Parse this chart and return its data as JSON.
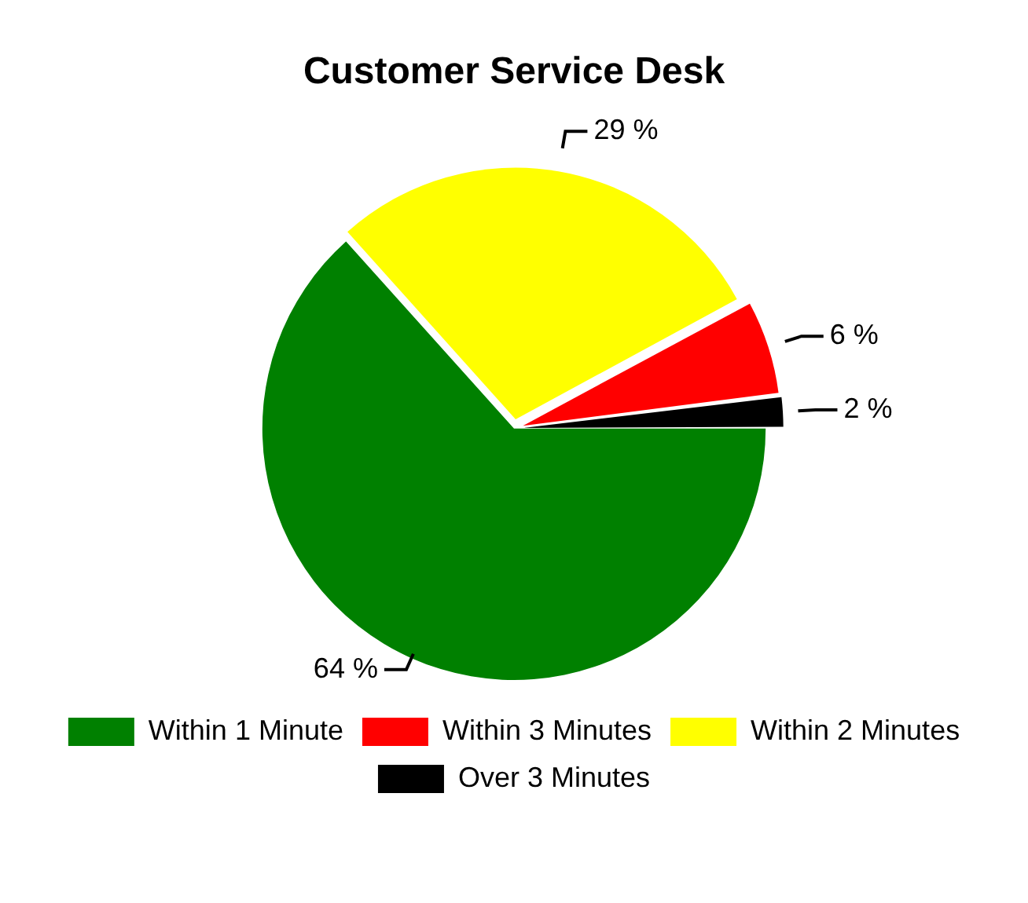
{
  "chart_data": {
    "type": "pie",
    "title": "Customer Service Desk",
    "categories": [
      "Within 1 Minute",
      "Within 2 Minutes",
      "Within 3 Minutes",
      "Over 3 Minutes"
    ],
    "values": [
      64,
      29,
      6,
      2
    ],
    "colors": [
      "#008000",
      "#ffff00",
      "#ff0000",
      "#000000"
    ],
    "value_labels": [
      "64 %",
      "29 %",
      "6 %",
      "2 %"
    ],
    "legend": "bottom"
  }
}
